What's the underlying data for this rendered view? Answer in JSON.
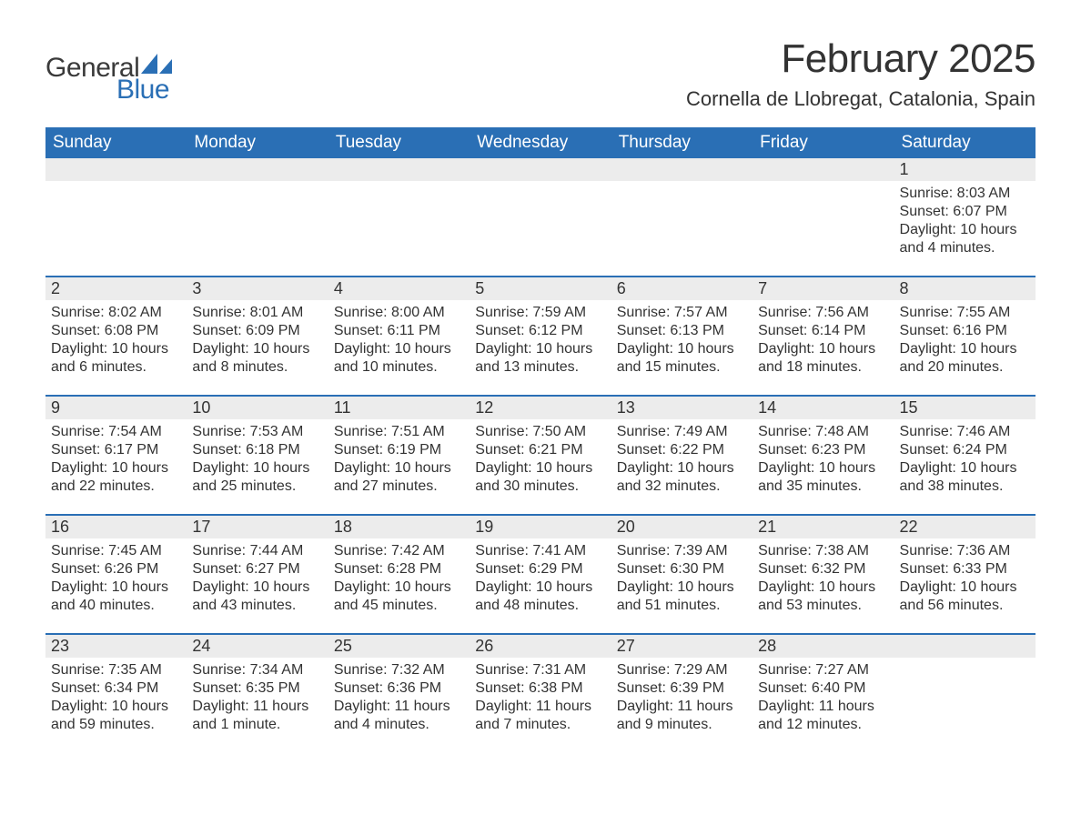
{
  "brand": {
    "general": "General",
    "blue": "Blue",
    "text_color": "#3a3a3a",
    "blue_color": "#2a6fb5",
    "sail_color": "#2a6fb5"
  },
  "title": "February 2025",
  "subtitle": "Cornella de Llobregat, Catalonia, Spain",
  "colors": {
    "header_bg": "#2a6fb5",
    "header_text": "#ffffff",
    "daynum_bg": "#ececec",
    "divider": "#2a6fb5",
    "body_text": "#333333",
    "page_bg": "#ffffff"
  },
  "typography": {
    "title_fontsize": 44,
    "subtitle_fontsize": 22,
    "weekday_fontsize": 19,
    "daynum_fontsize": 18,
    "body_fontsize": 16,
    "logo_fontsize": 30
  },
  "weekdays": [
    "Sunday",
    "Monday",
    "Tuesday",
    "Wednesday",
    "Thursday",
    "Friday",
    "Saturday"
  ],
  "weeks": [
    [
      {
        "empty": true
      },
      {
        "empty": true
      },
      {
        "empty": true
      },
      {
        "empty": true
      },
      {
        "empty": true
      },
      {
        "empty": true
      },
      {
        "day": "1",
        "sunrise": "Sunrise: 8:03 AM",
        "sunset": "Sunset: 6:07 PM",
        "daylight": "Daylight: 10 hours and 4 minutes."
      }
    ],
    [
      {
        "day": "2",
        "sunrise": "Sunrise: 8:02 AM",
        "sunset": "Sunset: 6:08 PM",
        "daylight": "Daylight: 10 hours and 6 minutes."
      },
      {
        "day": "3",
        "sunrise": "Sunrise: 8:01 AM",
        "sunset": "Sunset: 6:09 PM",
        "daylight": "Daylight: 10 hours and 8 minutes."
      },
      {
        "day": "4",
        "sunrise": "Sunrise: 8:00 AM",
        "sunset": "Sunset: 6:11 PM",
        "daylight": "Daylight: 10 hours and 10 minutes."
      },
      {
        "day": "5",
        "sunrise": "Sunrise: 7:59 AM",
        "sunset": "Sunset: 6:12 PM",
        "daylight": "Daylight: 10 hours and 13 minutes."
      },
      {
        "day": "6",
        "sunrise": "Sunrise: 7:57 AM",
        "sunset": "Sunset: 6:13 PM",
        "daylight": "Daylight: 10 hours and 15 minutes."
      },
      {
        "day": "7",
        "sunrise": "Sunrise: 7:56 AM",
        "sunset": "Sunset: 6:14 PM",
        "daylight": "Daylight: 10 hours and 18 minutes."
      },
      {
        "day": "8",
        "sunrise": "Sunrise: 7:55 AM",
        "sunset": "Sunset: 6:16 PM",
        "daylight": "Daylight: 10 hours and 20 minutes."
      }
    ],
    [
      {
        "day": "9",
        "sunrise": "Sunrise: 7:54 AM",
        "sunset": "Sunset: 6:17 PM",
        "daylight": "Daylight: 10 hours and 22 minutes."
      },
      {
        "day": "10",
        "sunrise": "Sunrise: 7:53 AM",
        "sunset": "Sunset: 6:18 PM",
        "daylight": "Daylight: 10 hours and 25 minutes."
      },
      {
        "day": "11",
        "sunrise": "Sunrise: 7:51 AM",
        "sunset": "Sunset: 6:19 PM",
        "daylight": "Daylight: 10 hours and 27 minutes."
      },
      {
        "day": "12",
        "sunrise": "Sunrise: 7:50 AM",
        "sunset": "Sunset: 6:21 PM",
        "daylight": "Daylight: 10 hours and 30 minutes."
      },
      {
        "day": "13",
        "sunrise": "Sunrise: 7:49 AM",
        "sunset": "Sunset: 6:22 PM",
        "daylight": "Daylight: 10 hours and 32 minutes."
      },
      {
        "day": "14",
        "sunrise": "Sunrise: 7:48 AM",
        "sunset": "Sunset: 6:23 PM",
        "daylight": "Daylight: 10 hours and 35 minutes."
      },
      {
        "day": "15",
        "sunrise": "Sunrise: 7:46 AM",
        "sunset": "Sunset: 6:24 PM",
        "daylight": "Daylight: 10 hours and 38 minutes."
      }
    ],
    [
      {
        "day": "16",
        "sunrise": "Sunrise: 7:45 AM",
        "sunset": "Sunset: 6:26 PM",
        "daylight": "Daylight: 10 hours and 40 minutes."
      },
      {
        "day": "17",
        "sunrise": "Sunrise: 7:44 AM",
        "sunset": "Sunset: 6:27 PM",
        "daylight": "Daylight: 10 hours and 43 minutes."
      },
      {
        "day": "18",
        "sunrise": "Sunrise: 7:42 AM",
        "sunset": "Sunset: 6:28 PM",
        "daylight": "Daylight: 10 hours and 45 minutes."
      },
      {
        "day": "19",
        "sunrise": "Sunrise: 7:41 AM",
        "sunset": "Sunset: 6:29 PM",
        "daylight": "Daylight: 10 hours and 48 minutes."
      },
      {
        "day": "20",
        "sunrise": "Sunrise: 7:39 AM",
        "sunset": "Sunset: 6:30 PM",
        "daylight": "Daylight: 10 hours and 51 minutes."
      },
      {
        "day": "21",
        "sunrise": "Sunrise: 7:38 AM",
        "sunset": "Sunset: 6:32 PM",
        "daylight": "Daylight: 10 hours and 53 minutes."
      },
      {
        "day": "22",
        "sunrise": "Sunrise: 7:36 AM",
        "sunset": "Sunset: 6:33 PM",
        "daylight": "Daylight: 10 hours and 56 minutes."
      }
    ],
    [
      {
        "day": "23",
        "sunrise": "Sunrise: 7:35 AM",
        "sunset": "Sunset: 6:34 PM",
        "daylight": "Daylight: 10 hours and 59 minutes."
      },
      {
        "day": "24",
        "sunrise": "Sunrise: 7:34 AM",
        "sunset": "Sunset: 6:35 PM",
        "daylight": "Daylight: 11 hours and 1 minute."
      },
      {
        "day": "25",
        "sunrise": "Sunrise: 7:32 AM",
        "sunset": "Sunset: 6:36 PM",
        "daylight": "Daylight: 11 hours and 4 minutes."
      },
      {
        "day": "26",
        "sunrise": "Sunrise: 7:31 AM",
        "sunset": "Sunset: 6:38 PM",
        "daylight": "Daylight: 11 hours and 7 minutes."
      },
      {
        "day": "27",
        "sunrise": "Sunrise: 7:29 AM",
        "sunset": "Sunset: 6:39 PM",
        "daylight": "Daylight: 11 hours and 9 minutes."
      },
      {
        "day": "28",
        "sunrise": "Sunrise: 7:27 AM",
        "sunset": "Sunset: 6:40 PM",
        "daylight": "Daylight: 11 hours and 12 minutes."
      },
      {
        "empty": true
      }
    ]
  ]
}
